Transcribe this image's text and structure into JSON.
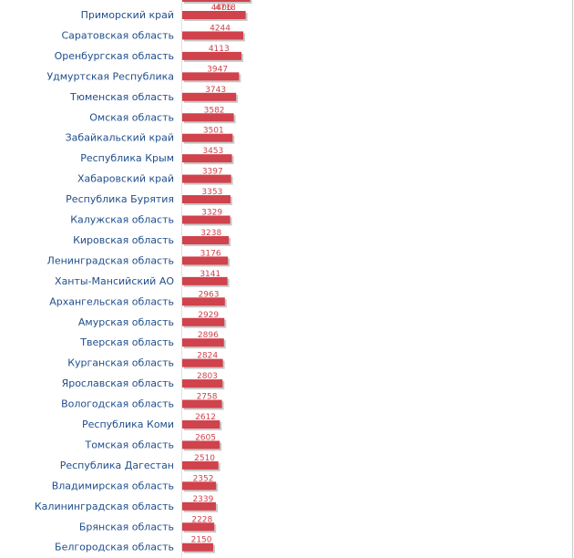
{
  "chart_data": {
    "type": "bar",
    "orientation": "horizontal",
    "title": "",
    "xlabel": "",
    "ylabel": "",
    "grid": false,
    "legend": "none",
    "bar_color": "#d0424c",
    "bar_shadow_color": "#c9c9c9",
    "label_color": "#1f4e8c",
    "value_label_color": "#d0424c",
    "partial_top_value": 4718,
    "categories": [
      "Приморский край",
      "Саратовская область",
      "Оренбургская область",
      "Удмуртская Республика",
      "Тюменская область",
      "Омская область",
      "Забайкальский край",
      "Республика Крым",
      "Хабаровский край",
      "Республика Бурятия",
      "Калужская область",
      "Кировская область",
      "Ленинградская область",
      "Ханты-Мансийский АО",
      "Архангельская область",
      "Амурская область",
      "Тверская область",
      "Курганская область",
      "Ярославская область",
      "Вологодская область",
      "Республика Коми",
      "Томская область",
      "Республика Дагестан",
      "Владимирская область",
      "Калининградская область",
      "Брянская область",
      "Белгородская область"
    ],
    "values": [
      4406,
      4244,
      4113,
      3947,
      3743,
      3582,
      3501,
      3453,
      3397,
      3353,
      3329,
      3238,
      3176,
      3141,
      2963,
      2929,
      2896,
      2824,
      2803,
      2758,
      2612,
      2605,
      2510,
      2352,
      2339,
      2228,
      2150
    ]
  }
}
